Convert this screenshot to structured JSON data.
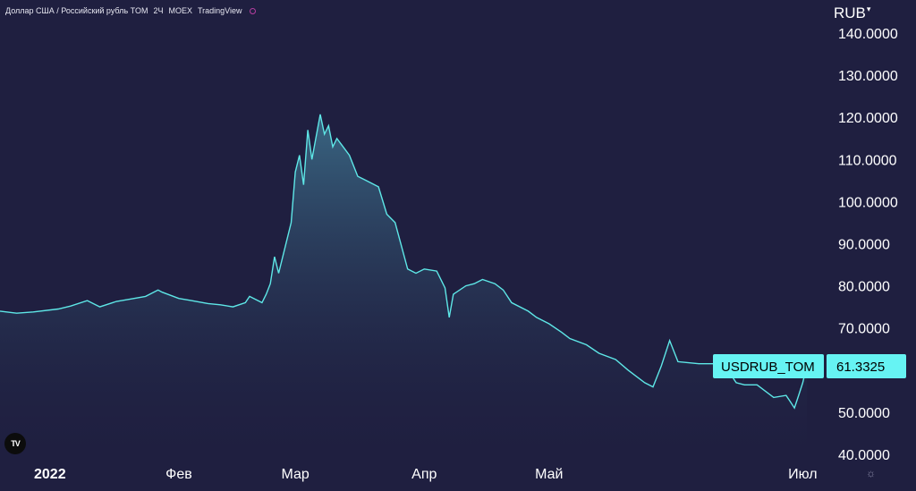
{
  "header": {
    "title": "Доллар США / Российский рубль TOM",
    "interval": "2Ч",
    "exchange": "MOEX",
    "brand": "TradingView"
  },
  "axis": {
    "unit": "RUB",
    "unit_caret": "▾"
  },
  "logo": {
    "text": "TV"
  },
  "icons": {
    "settings": "settings-icon"
  },
  "colors": {
    "background": "#1f1f40",
    "line": "#5ee7e7",
    "area_top": "#3b6a86",
    "tag_bg": "#66f3f3"
  },
  "price_tag": {
    "symbol": "USDRUB_TOM",
    "value": "61.3325"
  },
  "chart_data": {
    "type": "area",
    "title": "Доллар США / Российский рубль TOM",
    "xlabel": "",
    "ylabel": "RUB",
    "ylim": [
      40,
      140
    ],
    "grid": false,
    "y_ticks": [
      "140.0000",
      "130.0000",
      "120.0000",
      "110.0000",
      "100.0000",
      "90.0000",
      "80.0000",
      "70.0000",
      "50.0000",
      "40.0000"
    ],
    "x_ticks": [
      {
        "label": "2022",
        "date": "2022-01-01",
        "year": true
      },
      {
        "label": "Фев",
        "date": "2022-02-01"
      },
      {
        "label": "Мар",
        "date": "2022-03-01"
      },
      {
        "label": "Апр",
        "date": "2022-04-01"
      },
      {
        "label": "Май",
        "date": "2022-05-01"
      },
      {
        "label": "Июл",
        "date": "2022-07-01"
      }
    ],
    "x_range": [
      "2021-12-20",
      "2022-07-05"
    ],
    "series": [
      {
        "points": [
          [
            "2021-12-20",
            74.0
          ],
          [
            "2021-12-24",
            73.5
          ],
          [
            "2021-12-28",
            73.8
          ],
          [
            "2022-01-03",
            74.5
          ],
          [
            "2022-01-06",
            75.2
          ],
          [
            "2022-01-10",
            76.5
          ],
          [
            "2022-01-13",
            75.0
          ],
          [
            "2022-01-17",
            76.3
          ],
          [
            "2022-01-20",
            76.8
          ],
          [
            "2022-01-24",
            77.5
          ],
          [
            "2022-01-27",
            79.0
          ],
          [
            "2022-01-28",
            78.5
          ],
          [
            "2022-02-01",
            77.0
          ],
          [
            "2022-02-04",
            76.5
          ],
          [
            "2022-02-08",
            75.8
          ],
          [
            "2022-02-11",
            75.5
          ],
          [
            "2022-02-14",
            75.0
          ],
          [
            "2022-02-17",
            76.0
          ],
          [
            "2022-02-18",
            77.5
          ],
          [
            "2022-02-21",
            76.0
          ],
          [
            "2022-02-22",
            78.0
          ],
          [
            "2022-02-23",
            80.5
          ],
          [
            "2022-02-24",
            86.9
          ],
          [
            "2022-02-25",
            83.0
          ],
          [
            "2022-02-28",
            95.0
          ],
          [
            "2022-03-01",
            107.0
          ],
          [
            "2022-03-02",
            111.0
          ],
          [
            "2022-03-03",
            104.0
          ],
          [
            "2022-03-04",
            117.0
          ],
          [
            "2022-03-05",
            110.0
          ],
          [
            "2022-03-07",
            120.7
          ],
          [
            "2022-03-08",
            116.0
          ],
          [
            "2022-03-09",
            118.0
          ],
          [
            "2022-03-10",
            113.0
          ],
          [
            "2022-03-11",
            115.0
          ],
          [
            "2022-03-14",
            111.0
          ],
          [
            "2022-03-16",
            106.0
          ],
          [
            "2022-03-18",
            105.0
          ],
          [
            "2022-03-21",
            103.5
          ],
          [
            "2022-03-23",
            97.0
          ],
          [
            "2022-03-25",
            95.0
          ],
          [
            "2022-03-28",
            84.0
          ],
          [
            "2022-03-30",
            83.0
          ],
          [
            "2022-04-01",
            84.0
          ],
          [
            "2022-04-04",
            83.5
          ],
          [
            "2022-04-06",
            79.5
          ],
          [
            "2022-04-07",
            72.5
          ],
          [
            "2022-04-08",
            78.0
          ],
          [
            "2022-04-11",
            80.0
          ],
          [
            "2022-04-13",
            80.5
          ],
          [
            "2022-04-15",
            81.5
          ],
          [
            "2022-04-18",
            80.5
          ],
          [
            "2022-04-20",
            79.0
          ],
          [
            "2022-04-22",
            76.0
          ],
          [
            "2022-04-26",
            74.0
          ],
          [
            "2022-04-28",
            72.5
          ],
          [
            "2022-05-01",
            71.0
          ],
          [
            "2022-05-04",
            69.0
          ],
          [
            "2022-05-06",
            67.5
          ],
          [
            "2022-05-10",
            66.0
          ],
          [
            "2022-05-13",
            64.0
          ],
          [
            "2022-05-17",
            62.5
          ],
          [
            "2022-05-20",
            60.0
          ],
          [
            "2022-05-24",
            57.0
          ],
          [
            "2022-05-26",
            56.0
          ],
          [
            "2022-05-28",
            61.0
          ],
          [
            "2022-05-30",
            67.0
          ],
          [
            "2022-06-01",
            62.0
          ],
          [
            "2022-06-06",
            61.5
          ],
          [
            "2022-06-10",
            61.5
          ],
          [
            "2022-06-13",
            60.0
          ],
          [
            "2022-06-15",
            57.0
          ],
          [
            "2022-06-17",
            56.5
          ],
          [
            "2022-06-20",
            56.5
          ],
          [
            "2022-06-24",
            53.5
          ],
          [
            "2022-06-27",
            54.0
          ],
          [
            "2022-06-28",
            52.5
          ],
          [
            "2022-06-29",
            51.0
          ],
          [
            "2022-06-30",
            54.0
          ],
          [
            "2022-07-01",
            57.0
          ],
          [
            "2022-07-02",
            61.3
          ]
        ]
      }
    ]
  }
}
